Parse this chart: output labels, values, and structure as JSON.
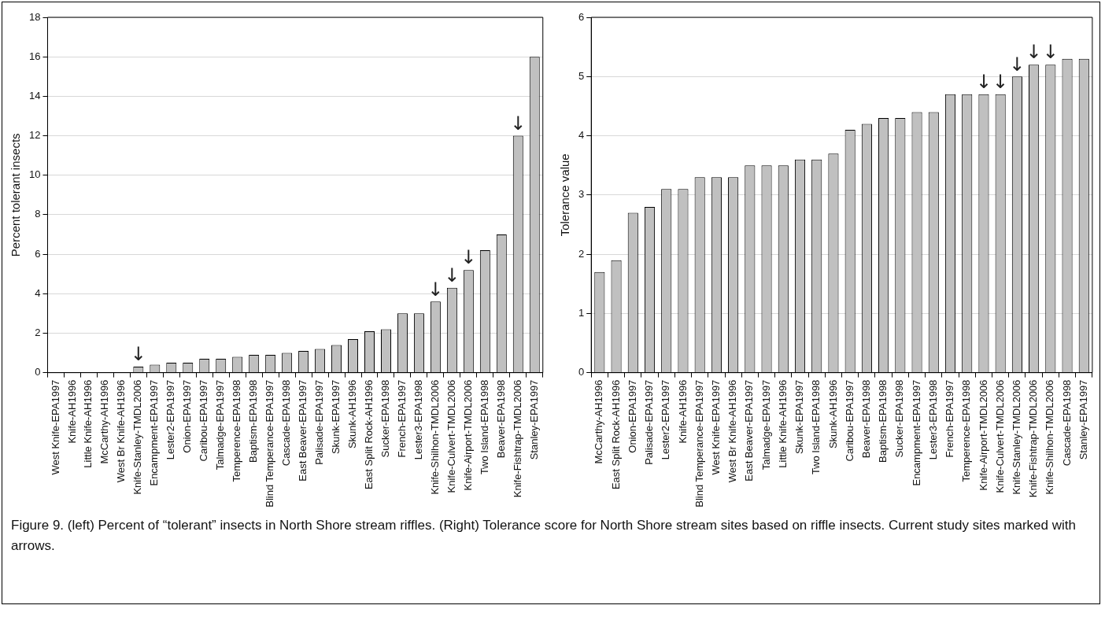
{
  "chart_data": [
    {
      "type": "bar",
      "ylabel": "Percent tolerant insects",
      "categories": [
        "West Knife-EPA1997",
        "Knife-AH1996",
        "Little Knife-AH1996",
        "McCarthy-AH1996",
        "West Br Knife-AH1996",
        "Knife-Stanley-TMDL2006",
        "Encampment-EPA1997",
        "Lester2-EPA1997",
        "Onion-EPA1997",
        "Caribou-EPA1997",
        "Talmadge-EPA1997",
        "Temperence-EPA1998",
        "Baptism-EPA1998",
        "Blind Temperance-EPA1997",
        "Cascade-EPA1998",
        "East Beaver-EPA1997",
        "Palisade-EPA1997",
        "Skunk-EPA1997",
        "Skunk-AH1996",
        "East Split Rock-AH1996",
        "Sucker-EPA1998",
        "French-EPA1997",
        "Lester3-EPA1998",
        "Knife-Shilhon-TMDL2006",
        "Knife-Culvert-TMDL2006",
        "Knife-Airport-TMDL2006",
        "Two Island-EPA1998",
        "Beaver-EPA1998",
        "Knife-Fishtrap-TMDL2006",
        "Stanley-EPA1997"
      ],
      "values": [
        0,
        0,
        0,
        0,
        0,
        0.3,
        0.4,
        0.5,
        0.5,
        0.7,
        0.7,
        0.8,
        0.9,
        0.9,
        1.0,
        1.1,
        1.2,
        1.4,
        1.7,
        2.1,
        2.2,
        3.0,
        3.0,
        3.6,
        4.3,
        5.2,
        6.2,
        7.0,
        12.0,
        16.0
      ],
      "color": "#c0c0c0",
      "ylim": [
        0,
        18
      ],
      "yticks": [
        0,
        2,
        4,
        6,
        8,
        10,
        12,
        14,
        16,
        18
      ],
      "grid": "y",
      "annotations": [
        {
          "text": "↓",
          "x": "Knife-Stanley-TMDL2006",
          "y": 0.3
        },
        {
          "text": "↓",
          "x": "Knife-Shilhon-TMDL2006",
          "y": 3.6
        },
        {
          "text": "↓",
          "x": "Knife-Culvert-TMDL2006",
          "y": 4.3
        },
        {
          "text": "↓",
          "x": "Knife-Airport-TMDL2006",
          "y": 5.2
        },
        {
          "text": "↓",
          "x": "Knife-Fishtrap-TMDL2006",
          "y": 12.0
        },
        "Figure 9. (left) Percent of “tolerant” insects in North Shore stream riffles. (Right) Tolerance score for North Shore stream sites based on riffle insects. Current study sites marked with arrows."
      ]
    },
    {
      "type": "bar",
      "ylabel": "Tolerance value",
      "categories": [
        "McCarthy-AH1996",
        "East Split Rock-AH1996",
        "Onion-EPA1997",
        "Palisade-EPA1997",
        "Lester2-EPA1997",
        "Knife-AH1996",
        "Blind Temperance-EPA1997",
        "West Knife-EPA1997",
        "West Br Knife-AH1996",
        "East Beaver-EPA1997",
        "Talmadge-EPA1997",
        "Little Knife-AH1996",
        "Skunk-EPA1997",
        "Two Island-EPA1998",
        "Skunk-AH1996",
        "Caribou-EPA1997",
        "Beaver-EPA1998",
        "Baptism-EPA1998",
        "Sucker-EPA1998",
        "Encampment-EPA1997",
        "Lester3-EPA1998",
        "French-EPA1997",
        "Temperence-EPA1998",
        "Knife-Airport-TMDL2006",
        "Knife-Culvert-TMDL2006",
        "Knife-Stanley-TMDL2006",
        "Knife-Fishtrap-TMDL2006",
        "Knife-Shilhon-TMDL2006",
        "Cascade-EPA1998",
        "Stanley-EPA1997"
      ],
      "values": [
        1.7,
        1.9,
        2.7,
        2.8,
        3.1,
        3.1,
        3.3,
        3.3,
        3.3,
        3.5,
        3.5,
        3.5,
        3.6,
        3.6,
        3.7,
        4.1,
        4.2,
        4.3,
        4.3,
        4.4,
        4.4,
        4.7,
        4.7,
        4.7,
        4.7,
        5.0,
        5.2,
        5.2,
        5.3,
        5.3
      ],
      "color": "#c0c0c0",
      "ylim": [
        0,
        6
      ],
      "yticks": [
        0,
        1,
        2,
        3,
        4,
        5,
        6
      ],
      "grid": "y",
      "annotations": [
        {
          "text": "↓",
          "x": "Knife-Airport-TMDL2006",
          "y": 4.7
        },
        {
          "text": "↓",
          "x": "Knife-Culvert-TMDL2006",
          "y": 4.7
        },
        {
          "text": "↓",
          "x": "Knife-Stanley-TMDL2006",
          "y": 5.0
        },
        {
          "text": "↓",
          "x": "Knife-Fishtrap-TMDL2006",
          "y": 5.2
        },
        {
          "text": "↓",
          "x": "Knife-Shilhon-TMDL2006",
          "y": 5.2
        }
      ]
    }
  ]
}
